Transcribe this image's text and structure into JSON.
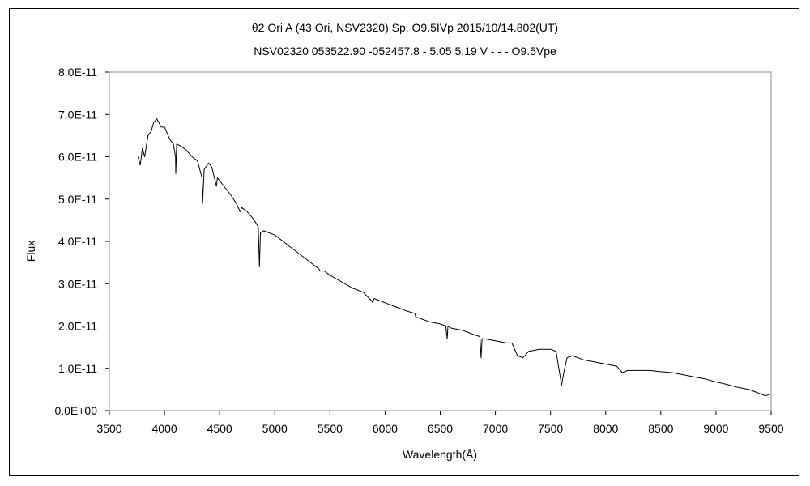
{
  "chart_data": {
    "type": "line",
    "title": "θ2 Ori A (43 Ori, NSV2320)    Sp. O9.5IVp    2015/10/14.802(UT)",
    "subtitle": "NSV02320 053522.90 -052457.8 - 5.05 5.19 V - - - O9.5Vpe",
    "xlabel": "Wavelength(Å)",
    "ylabel": "Flux",
    "xlim": [
      3500,
      9500
    ],
    "ylim": [
      0,
      8e-11
    ],
    "x_ticks": [
      "3500",
      "4000",
      "4500",
      "5000",
      "5500",
      "6000",
      "6500",
      "7000",
      "7500",
      "8000",
      "8500",
      "9000",
      "9500"
    ],
    "y_ticks": [
      "0.0E+00",
      "1.0E-11",
      "2.0E-11",
      "3.0E-11",
      "4.0E-11",
      "5.0E-11",
      "6.0E-11",
      "7.0E-11",
      "8.0E-11"
    ],
    "grid": false,
    "legend": "none",
    "series": [
      {
        "color": "#000000",
        "x": [
          3760,
          3780,
          3800,
          3820,
          3850,
          3880,
          3900,
          3930,
          3970,
          4000,
          4050,
          4080,
          4100,
          4102,
          4110,
          4150,
          4200,
          4250,
          4300,
          4340,
          4345,
          4360,
          4400,
          4430,
          4471,
          4480,
          4540,
          4600,
          4650,
          4686,
          4700,
          4750,
          4800,
          4850,
          4861,
          4870,
          4900,
          4950,
          5000,
          5100,
          5200,
          5300,
          5400,
          5411,
          5450,
          5500,
          5600,
          5700,
          5800,
          5876,
          5890,
          5900,
          6000,
          6100,
          6200,
          6270,
          6280,
          6300,
          6400,
          6500,
          6550,
          6563,
          6570,
          6600,
          6700,
          6800,
          6860,
          6870,
          6880,
          6900,
          7000,
          7100,
          7150,
          7200,
          7250,
          7300,
          7400,
          7500,
          7550,
          7600,
          7620,
          7650,
          7700,
          7800,
          7900,
          8000,
          8100,
          8150,
          8200,
          8300,
          8400,
          8500,
          8600,
          8700,
          8800,
          8900,
          9000,
          9100,
          9200,
          9300,
          9400,
          9450,
          9500
        ],
        "y": [
          6e-11,
          5.8e-11,
          6.2e-11,
          6e-11,
          6.5e-11,
          6.6e-11,
          6.8e-11,
          6.9e-11,
          6.7e-11,
          6.7e-11,
          6.4e-11,
          6.3e-11,
          6e-11,
          5.6e-11,
          6.3e-11,
          6.25e-11,
          6.15e-11,
          6e-11,
          5.9e-11,
          5.5e-11,
          4.9e-11,
          5.7e-11,
          5.85e-11,
          5.75e-11,
          5.3e-11,
          5.5e-11,
          5.3e-11,
          5.1e-11,
          4.9e-11,
          4.7e-11,
          4.8e-11,
          4.7e-11,
          4.55e-11,
          4.35e-11,
          3.4e-11,
          4.2e-11,
          4.25e-11,
          4.2e-11,
          4.15e-11,
          3.95e-11,
          3.75e-11,
          3.55e-11,
          3.35e-11,
          3.3e-11,
          3.3e-11,
          3.2e-11,
          3.05e-11,
          2.9e-11,
          2.8e-11,
          2.6e-11,
          2.55e-11,
          2.65e-11,
          2.55e-11,
          2.45e-11,
          2.35e-11,
          2.3e-11,
          2.2e-11,
          2.2e-11,
          2.1e-11,
          2.05e-11,
          2e-11,
          1.7e-11,
          2e-11,
          1.95e-11,
          1.9e-11,
          1.8e-11,
          1.75e-11,
          1.25e-11,
          1.7e-11,
          1.7e-11,
          1.65e-11,
          1.6e-11,
          1.6e-11,
          1.3e-11,
          1.25e-11,
          1.4e-11,
          1.45e-11,
          1.45e-11,
          1.4e-11,
          6e-12,
          9e-12,
          1.25e-11,
          1.3e-11,
          1.2e-11,
          1.15e-11,
          1.1e-11,
          1.05e-11,
          9e-12,
          9.5e-12,
          9.5e-12,
          9.5e-12,
          9.2e-12,
          9e-12,
          8.5e-12,
          8e-12,
          7.5e-12,
          6.8e-12,
          6.2e-12,
          5.5e-12,
          5e-12,
          4e-12,
          3.5e-12,
          4e-12
        ]
      }
    ]
  }
}
